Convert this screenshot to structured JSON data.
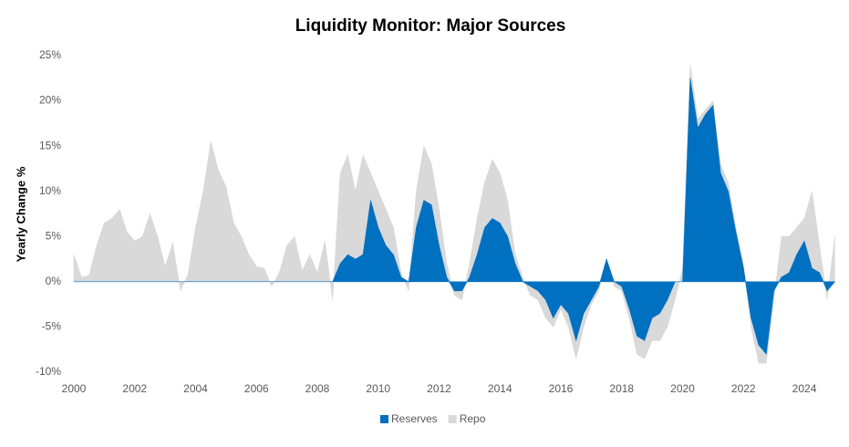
{
  "chart_data": {
    "type": "stacked_area",
    "title": "Liquidity Monitor: Major Sources",
    "y_label": "Yearly Change %",
    "x": [
      2000,
      2000.25,
      2000.5,
      2000.75,
      2001,
      2001.25,
      2001.5,
      2001.75,
      2002,
      2002.25,
      2002.5,
      2002.75,
      2003,
      2003.25,
      2003.5,
      2003.75,
      2004,
      2004.25,
      2004.5,
      2004.75,
      2005,
      2005.25,
      2005.5,
      2005.75,
      2006,
      2006.25,
      2006.5,
      2006.75,
      2007,
      2007.25,
      2007.5,
      2007.75,
      2008,
      2008.25,
      2008.5,
      2008.75,
      2009,
      2009.25,
      2009.5,
      2009.75,
      2010,
      2010.25,
      2010.5,
      2010.75,
      2011,
      2011.25,
      2011.5,
      2011.75,
      2012,
      2012.25,
      2012.5,
      2012.75,
      2013,
      2013.25,
      2013.5,
      2013.75,
      2014,
      2014.25,
      2014.5,
      2014.75,
      2015,
      2015.25,
      2015.5,
      2015.75,
      2016,
      2016.25,
      2016.5,
      2016.75,
      2017,
      2017.25,
      2017.5,
      2017.75,
      2018,
      2018.25,
      2018.5,
      2018.75,
      2019,
      2019.25,
      2019.5,
      2019.75,
      2020,
      2020.25,
      2020.5,
      2020.75,
      2021,
      2021.25,
      2021.5,
      2021.75,
      2022,
      2022.25,
      2022.5,
      2022.75,
      2023,
      2023.25,
      2023.5,
      2023.75,
      2024,
      2024.25,
      2024.5,
      2024.75,
      2025
    ],
    "series": [
      {
        "name": "Reserves",
        "color": "#0070c0",
        "values": [
          0,
          0,
          0,
          0,
          0,
          0,
          0,
          0,
          0,
          0,
          0,
          0,
          0,
          0,
          0,
          0,
          0,
          0,
          0,
          0,
          0,
          0,
          0,
          0,
          0,
          0,
          0,
          0,
          0,
          0,
          0,
          0,
          0,
          0,
          0,
          2,
          3,
          2.5,
          3,
          9,
          6,
          4,
          3,
          0.5,
          0,
          6,
          9,
          8.5,
          4,
          0.5,
          -1,
          -1,
          0.5,
          3,
          6,
          7,
          6.5,
          5,
          2,
          0,
          -0.5,
          -1,
          -2,
          -4,
          -2.5,
          -3.5,
          -6.5,
          -3.5,
          -2,
          -0.5,
          2.5,
          0,
          -0.5,
          -3,
          -6,
          -6.5,
          -4,
          -3.5,
          -2,
          0,
          0,
          22.5,
          17,
          18.5,
          19.5,
          12,
          10,
          5.5,
          1.5,
          -4,
          -7,
          -8,
          -1,
          0.5,
          1,
          3,
          4.5,
          1.5,
          1,
          -1,
          0
        ]
      },
      {
        "name": "Repo",
        "color": "#d9d9d9",
        "values": [
          3,
          0.5,
          0.7,
          4,
          6.5,
          7,
          8,
          5.5,
          4.5,
          5,
          7.5,
          5,
          1.7,
          4.3,
          -1,
          0.8,
          6,
          10,
          15.5,
          12.3,
          10.5,
          6.5,
          5,
          3,
          1.7,
          1.5,
          -0.5,
          1,
          4,
          5,
          1.2,
          3,
          1,
          4.5,
          -2,
          10,
          11,
          7.5,
          11,
          3,
          4,
          4,
          3,
          0.5,
          -1,
          4,
          6,
          4.5,
          4,
          1.5,
          -0.5,
          -1,
          1.5,
          4,
          5,
          6.5,
          5.5,
          4,
          1,
          0.5,
          -1,
          -1,
          -2,
          -1,
          -0.5,
          -1.5,
          -2,
          -1.5,
          -0.5,
          -0.5,
          0,
          -0.5,
          -0.5,
          -1,
          -2,
          -2,
          -2.5,
          -3,
          -3,
          -2,
          1.5,
          1.5,
          1,
          0.5,
          0.5,
          1,
          1,
          0.5,
          0.5,
          -1,
          -2,
          -1,
          -1,
          4.5,
          4,
          3,
          2.5,
          8.5,
          3,
          -1,
          5
        ]
      }
    ],
    "xlim": [
      2000,
      2025
    ],
    "xticks": [
      2000,
      2002,
      2004,
      2006,
      2008,
      2010,
      2012,
      2014,
      2016,
      2018,
      2020,
      2022,
      2024
    ],
    "ylim": [
      -10,
      25
    ],
    "yticks": [
      {
        "value": -10,
        "label": "-10%"
      },
      {
        "value": -5,
        "label": "-5%"
      },
      {
        "value": 0,
        "label": "0%"
      },
      {
        "value": 5,
        "label": "5%"
      },
      {
        "value": 10,
        "label": "10%"
      },
      {
        "value": 15,
        "label": "15%"
      },
      {
        "value": 20,
        "label": "20%"
      },
      {
        "value": 25,
        "label": "25%"
      }
    ],
    "grid": false,
    "legend": "bottom"
  }
}
